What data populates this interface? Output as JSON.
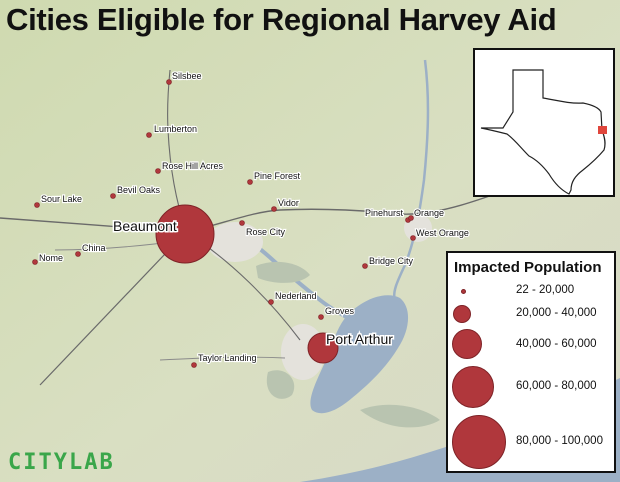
{
  "title": "Cities Eligible for Regional Harvey Aid",
  "brand": "CITYLAB",
  "colors": {
    "marker_fill": "#b0373c",
    "marker_stroke": "#7e2327",
    "land": "#d4dcb8",
    "water": "#9cb0c6",
    "brand_green": "#3aa64a"
  },
  "cities": [
    {
      "name": "Silsbee",
      "size": "dot",
      "label_pos": "right"
    },
    {
      "name": "Lumberton",
      "size": "dot",
      "label_pos": "right"
    },
    {
      "name": "Rose Hill Acres",
      "size": "dot",
      "label_pos": "right"
    },
    {
      "name": "Pine Forest",
      "size": "dot",
      "label_pos": "right"
    },
    {
      "name": "Bevil Oaks",
      "size": "dot",
      "label_pos": "right"
    },
    {
      "name": "Sour Lake",
      "size": "dot",
      "label_pos": "right"
    },
    {
      "name": "Vidor",
      "size": "dot",
      "label_pos": "right"
    },
    {
      "name": "Pinehurst",
      "size": "dot",
      "label_pos": "left"
    },
    {
      "name": "Orange",
      "size": "dot",
      "label_pos": "right"
    },
    {
      "name": "Beaumont",
      "size": "large",
      "label_pos": "left"
    },
    {
      "name": "Rose City",
      "size": "dot",
      "label_pos": "right"
    },
    {
      "name": "West Orange",
      "size": "dot",
      "label_pos": "right"
    },
    {
      "name": "China",
      "size": "dot",
      "label_pos": "right"
    },
    {
      "name": "Nome",
      "size": "dot",
      "label_pos": "right"
    },
    {
      "name": "Bridge City",
      "size": "dot",
      "label_pos": "right"
    },
    {
      "name": "Nederland",
      "size": "dot",
      "label_pos": "right"
    },
    {
      "name": "Groves",
      "size": "dot",
      "label_pos": "right"
    },
    {
      "name": "Port Arthur",
      "size": "medium",
      "label_pos": "right"
    },
    {
      "name": "Taylor Landing",
      "size": "dot",
      "label_pos": "right"
    }
  ],
  "inset": {
    "region_marker": "red square on Texas coast"
  },
  "legend": {
    "title": "Impacted Population",
    "items": [
      {
        "label": "22 - 20,000"
      },
      {
        "label": "20,000 - 40,000"
      },
      {
        "label": "40,000 - 60,000"
      },
      {
        "label": "60,000 - 80,000"
      },
      {
        "label": "80,000 - 100,000"
      }
    ]
  }
}
